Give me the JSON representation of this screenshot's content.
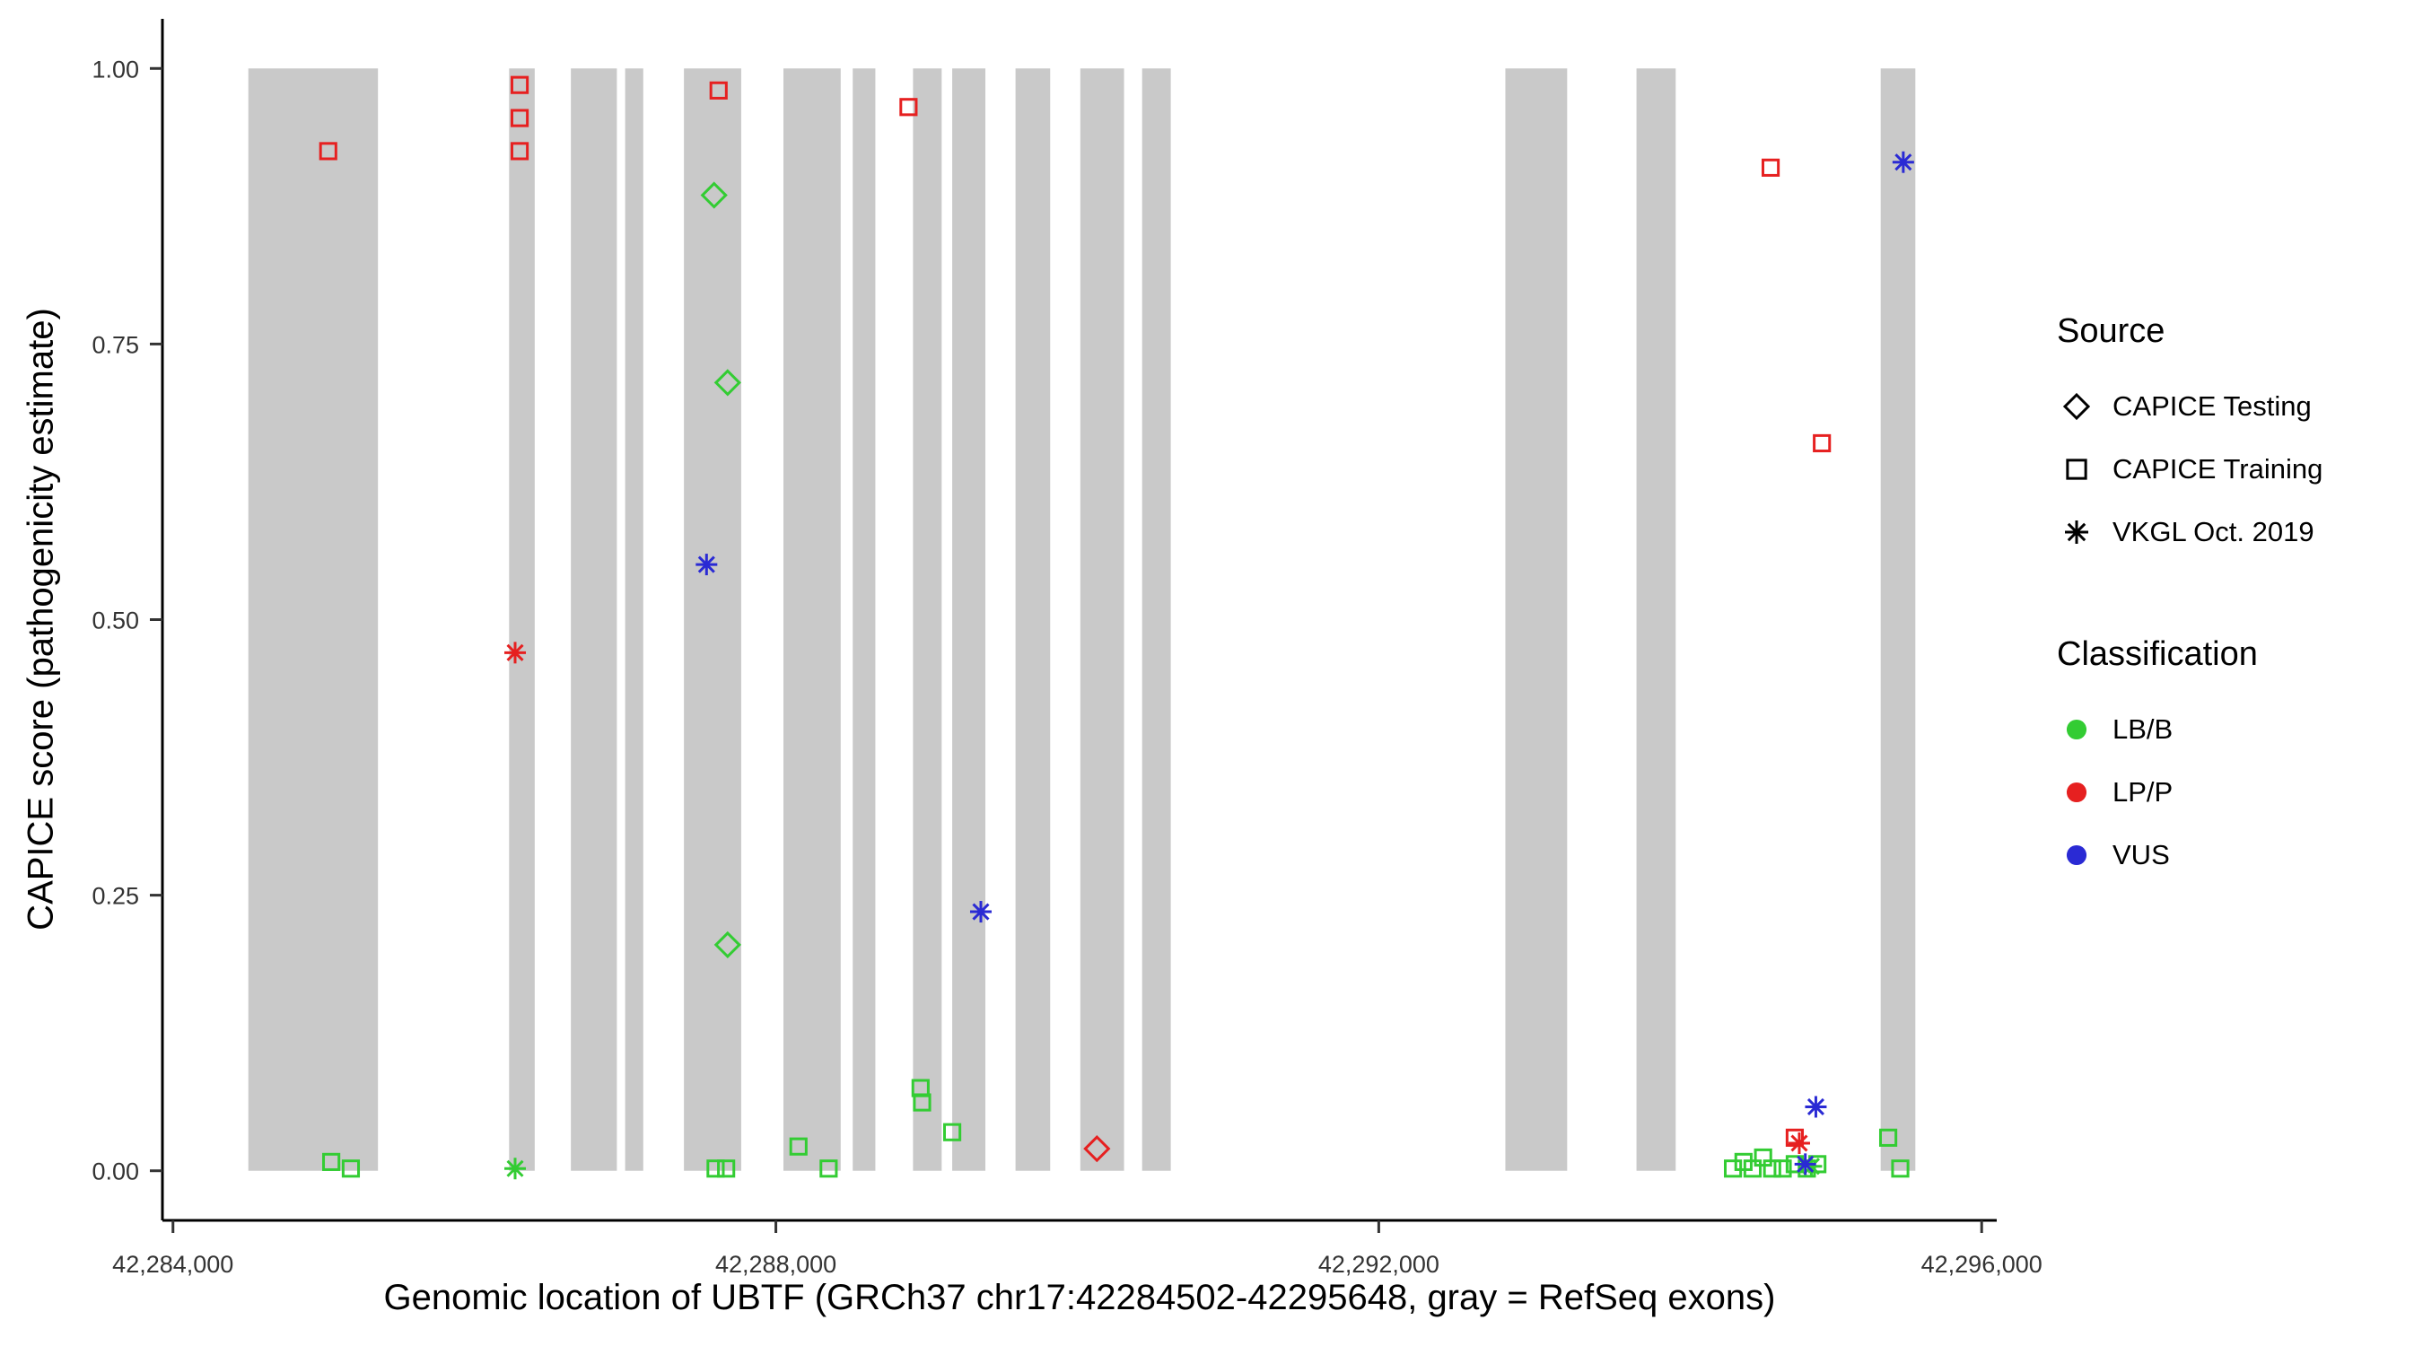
{
  "chart_data": {
    "type": "scatter",
    "xlabel": "Genomic location of UBTF (GRCh37 chr17:42284502-42295648, gray = RefSeq exons)",
    "ylabel": "CAPICE score (pathogenicity estimate)",
    "xlim": [
      42283930,
      42296100
    ],
    "ylim": [
      -0.045,
      1.045
    ],
    "grid": false,
    "legend_position": "right",
    "x_ticks": [
      {
        "v": 42284000,
        "label": "42,284,000"
      },
      {
        "v": 42288000,
        "label": "42,288,000"
      },
      {
        "v": 42292000,
        "label": "42,292,000"
      },
      {
        "v": 42296000,
        "label": "42,296,000"
      }
    ],
    "y_ticks": [
      {
        "v": 0.0,
        "label": "0.00"
      },
      {
        "v": 0.25,
        "label": "0.25"
      },
      {
        "v": 0.5,
        "label": "0.50"
      },
      {
        "v": 0.75,
        "label": "0.75"
      },
      {
        "v": 1.0,
        "label": "1.00"
      }
    ],
    "colors": {
      "LB/B": "#33cc33",
      "LP/P": "#e62020",
      "VUS": "#2a2ad4",
      "exon": "#c9c9c9",
      "axis": "#000000",
      "tick_label": "#333333"
    },
    "exons": [
      [
        42284500,
        42285360
      ],
      [
        42286230,
        42286400
      ],
      [
        42286640,
        42286945
      ],
      [
        42287000,
        42287120
      ],
      [
        42287390,
        42287770
      ],
      [
        42288050,
        42288430
      ],
      [
        42288510,
        42288660
      ],
      [
        42288910,
        42289100
      ],
      [
        42289170,
        42289390
      ],
      [
        42289590,
        42289820
      ],
      [
        42290020,
        42290310
      ],
      [
        42290430,
        42290620
      ],
      [
        42292840,
        42293250
      ],
      [
        42293710,
        42293970
      ],
      [
        42295330,
        42295560
      ]
    ],
    "series": [
      {
        "name": "CAPICE Testing / LB/B",
        "source": "CAPICE Testing",
        "classification": "LB/B",
        "marker": "diamond",
        "points": [
          [
            42287590,
            0.885
          ],
          [
            42287680,
            0.715
          ],
          [
            42287680,
            0.205
          ]
        ]
      },
      {
        "name": "CAPICE Testing / LP/P",
        "source": "CAPICE Testing",
        "classification": "LP/P",
        "marker": "diamond",
        "points": [
          [
            42290130,
            0.02
          ]
        ]
      },
      {
        "name": "CAPICE Training / LP/P",
        "source": "CAPICE Training",
        "classification": "LP/P",
        "marker": "square",
        "points": [
          [
            42285030,
            0.925
          ],
          [
            42286300,
            0.985
          ],
          [
            42286300,
            0.955
          ],
          [
            42286300,
            0.925
          ],
          [
            42287620,
            0.98
          ],
          [
            42288880,
            0.965
          ],
          [
            42294600,
            0.91
          ],
          [
            42294940,
            0.66
          ],
          [
            42294760,
            0.03
          ]
        ]
      },
      {
        "name": "CAPICE Training / LB/B",
        "source": "CAPICE Training",
        "classification": "LB/B",
        "marker": "square",
        "points": [
          [
            42285050,
            0.008
          ],
          [
            42285180,
            0.002
          ],
          [
            42287600,
            0.002
          ],
          [
            42287670,
            0.002
          ],
          [
            42288150,
            0.022
          ],
          [
            42288350,
            0.002
          ],
          [
            42288960,
            0.075
          ],
          [
            42288970,
            0.062
          ],
          [
            42289170,
            0.035
          ],
          [
            42294350,
            0.002
          ],
          [
            42294420,
            0.008
          ],
          [
            42294480,
            0.002
          ],
          [
            42294550,
            0.012
          ],
          [
            42294610,
            0.002
          ],
          [
            42294680,
            0.002
          ],
          [
            42294760,
            0.006
          ],
          [
            42294840,
            0.002
          ],
          [
            42294910,
            0.006
          ],
          [
            42295380,
            0.03
          ],
          [
            42295460,
            0.002
          ]
        ]
      },
      {
        "name": "VKGL Oct. 2019 / LP/P",
        "source": "VKGL Oct. 2019",
        "classification": "LP/P",
        "marker": "asterisk",
        "points": [
          [
            42286270,
            0.47
          ],
          [
            42294790,
            0.025
          ]
        ]
      },
      {
        "name": "VKGL Oct. 2019 / LB/B",
        "source": "VKGL Oct. 2019",
        "classification": "LB/B",
        "marker": "asterisk",
        "points": [
          [
            42286270,
            0.002
          ],
          [
            42294870,
            0.004
          ]
        ]
      },
      {
        "name": "VKGL Oct. 2019 / VUS",
        "source": "VKGL Oct. 2019",
        "classification": "VUS",
        "marker": "asterisk",
        "points": [
          [
            42287540,
            0.55
          ],
          [
            42289360,
            0.235
          ],
          [
            42294900,
            0.058
          ],
          [
            42294830,
            0.006
          ],
          [
            42295480,
            0.915
          ]
        ]
      }
    ],
    "legend": {
      "source": {
        "title": "Source",
        "items": [
          {
            "label": "CAPICE Testing",
            "marker": "diamond"
          },
          {
            "label": "CAPICE Training",
            "marker": "square"
          },
          {
            "label": "VKGL Oct. 2019",
            "marker": "asterisk"
          }
        ]
      },
      "classification": {
        "title": "Classification",
        "items": [
          {
            "label": "LB/B",
            "color": "#33cc33"
          },
          {
            "label": "LP/P",
            "color": "#e62020"
          },
          {
            "label": "VUS",
            "color": "#2a2ad4"
          }
        ]
      }
    }
  }
}
